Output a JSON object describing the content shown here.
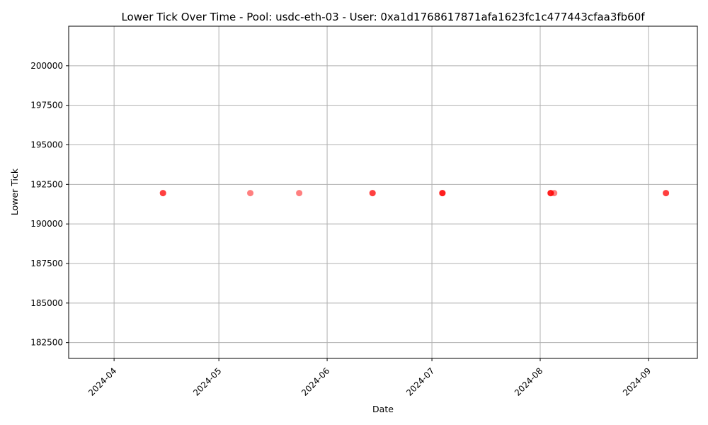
{
  "chart_data": {
    "type": "scatter",
    "title": "Lower Tick Over Time - Pool: usdc-eth-03 - User: 0xa1d1768617871afa1623fc1c477443cfaa3fb60f",
    "xlabel": "Date",
    "ylabel": "Lower Tick",
    "x_axis": "date",
    "xlim": [
      "2024-03-19",
      "2024-09-15"
    ],
    "ylim": [
      181500,
      202500
    ],
    "x_ticks": [
      "2024-04",
      "2024-05",
      "2024-06",
      "2024-07",
      "2024-08",
      "2024-09"
    ],
    "y_ticks": [
      182500,
      185000,
      187500,
      190000,
      192500,
      195000,
      197500,
      200000
    ],
    "grid": true,
    "marker_color": "#ff0000",
    "points": [
      {
        "x": "2024-04-15",
        "y": 191950
      },
      {
        "x": "2024-04-15",
        "y": 191950
      },
      {
        "x": "2024-05-10",
        "y": 191950
      },
      {
        "x": "2024-05-24",
        "y": 191950
      },
      {
        "x": "2024-06-14",
        "y": 191950
      },
      {
        "x": "2024-06-14",
        "y": 191950
      },
      {
        "x": "2024-07-04",
        "y": 191950
      },
      {
        "x": "2024-07-04",
        "y": 191950
      },
      {
        "x": "2024-07-04",
        "y": 191950
      },
      {
        "x": "2024-08-04",
        "y": 191950
      },
      {
        "x": "2024-08-04",
        "y": 191950
      },
      {
        "x": "2024-08-04",
        "y": 191950
      },
      {
        "x": "2024-08-05",
        "y": 191950
      },
      {
        "x": "2024-09-06",
        "y": 191950
      },
      {
        "x": "2024-09-06",
        "y": 191950
      }
    ]
  }
}
